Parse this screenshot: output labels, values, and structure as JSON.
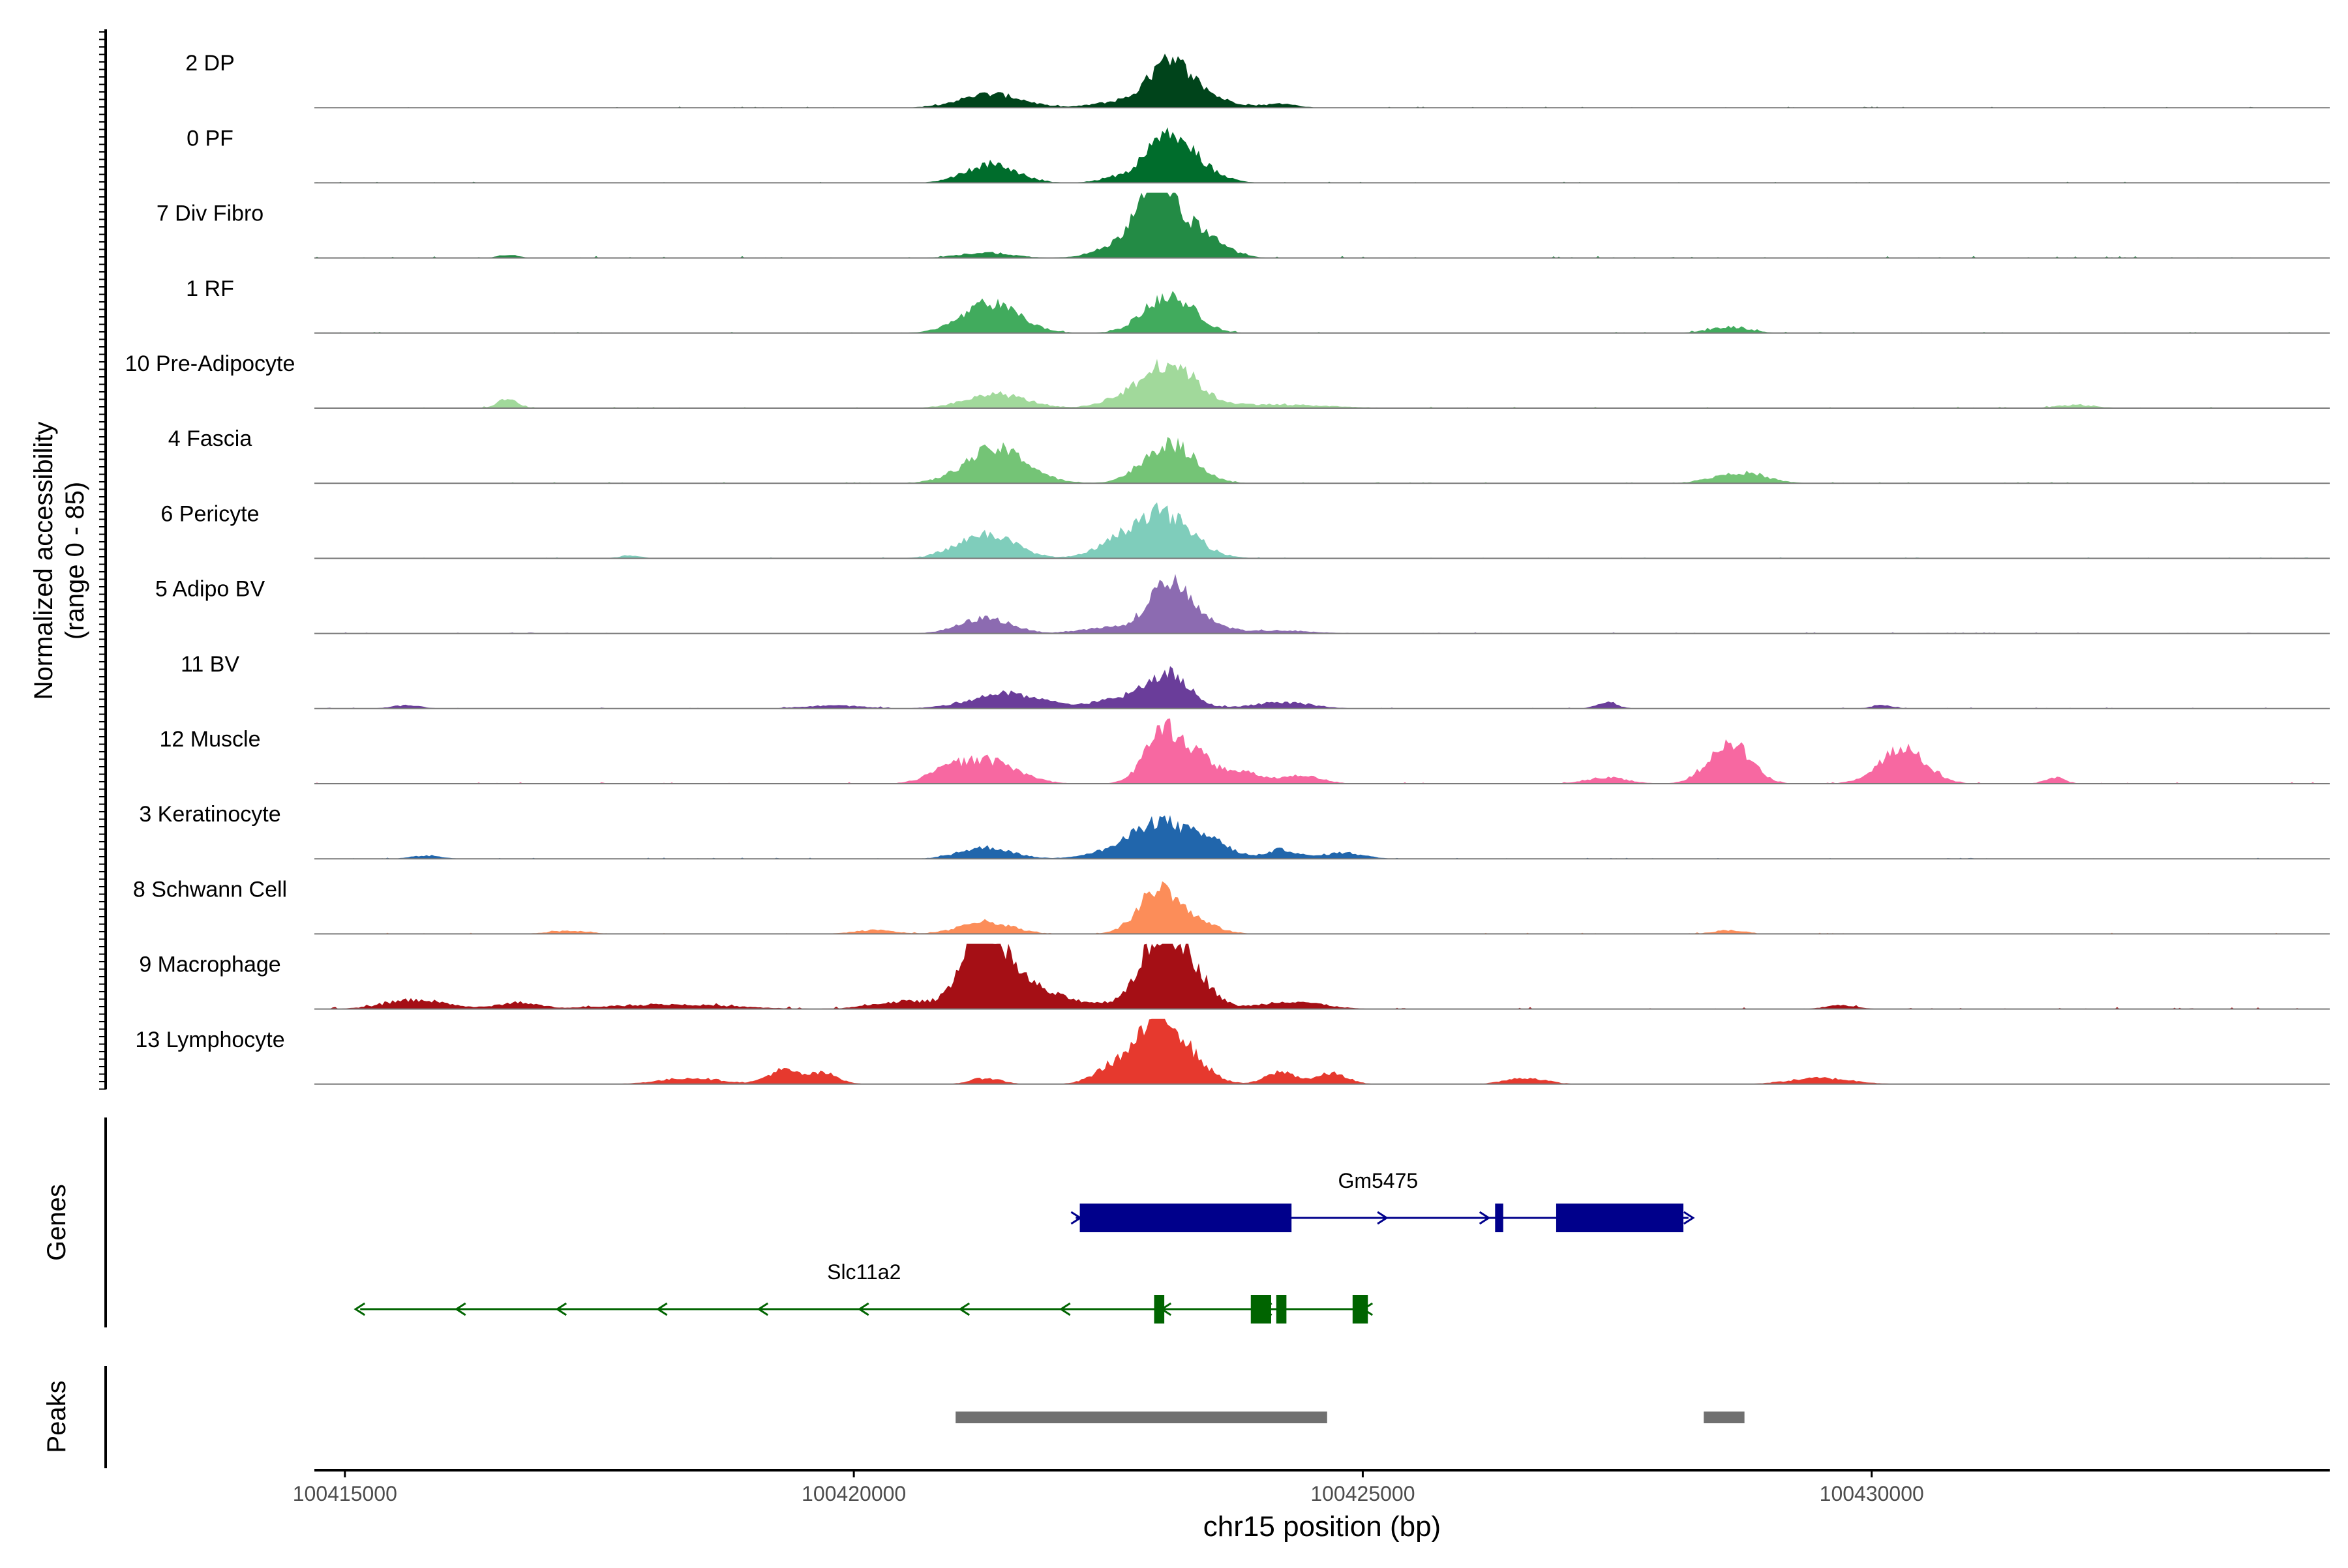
{
  "chart_data": {
    "type": "area",
    "title": "",
    "y_axis_label": "Normalized accessibility",
    "y_axis_sublabel": "(range 0 - 85)",
    "y_range": [
      0,
      85
    ],
    "x_axis_label": "chr15 position (bp)",
    "x_range": [
      100414700,
      100434500
    ],
    "x_ticks": [
      100415000,
      100420000,
      100425000,
      100430000
    ],
    "x_tick_labels": [
      "100415000",
      "100420000",
      "100425000",
      "100430000"
    ],
    "tracks": [
      {
        "name": "2 DP",
        "color": "#00441b",
        "noise": 1.5,
        "peaks": [
          [
            100421350,
            300,
            18
          ],
          [
            100423100,
            220,
            58
          ],
          [
            100422500,
            200,
            6
          ],
          [
            100423500,
            250,
            10
          ],
          [
            100424200,
            150,
            5
          ]
        ]
      },
      {
        "name": "0 PF",
        "color": "#006d2c",
        "noise": 1.5,
        "peaks": [
          [
            100421350,
            250,
            24
          ],
          [
            100423100,
            240,
            60
          ],
          [
            100422500,
            150,
            4
          ],
          [
            100423500,
            200,
            6
          ]
        ]
      },
      {
        "name": "7 Div Fibro",
        "color": "#238b45",
        "noise": 2.5,
        "peaks": [
          [
            100422950,
            150,
            72
          ],
          [
            100423100,
            300,
            50
          ],
          [
            100422600,
            250,
            10
          ],
          [
            100423500,
            200,
            10
          ],
          [
            100421300,
            250,
            7
          ],
          [
            100416600,
            100,
            4
          ]
        ]
      },
      {
        "name": "1 RF",
        "color": "#41ab5d",
        "noise": 1.5,
        "peaks": [
          [
            100421350,
            280,
            38
          ],
          [
            100423100,
            240,
            50
          ],
          [
            100428600,
            200,
            8
          ]
        ]
      },
      {
        "name": "10 Pre-Adipocyte",
        "color": "#a1d99b",
        "noise": 2,
        "peaks": [
          [
            100423100,
            250,
            58
          ],
          [
            100421400,
            300,
            18
          ],
          [
            100422600,
            200,
            10
          ],
          [
            100416600,
            100,
            12
          ],
          [
            100424000,
            600,
            5
          ],
          [
            100432000,
            200,
            4
          ]
        ]
      },
      {
        "name": "4 Fascia",
        "color": "#74c476",
        "noise": 1.5,
        "peaks": [
          [
            100421400,
            300,
            45
          ],
          [
            100423100,
            250,
            52
          ],
          [
            100428700,
            250,
            14
          ]
        ]
      },
      {
        "name": "6 Pericyte",
        "color": "#7fcdbb",
        "noise": 1.5,
        "peaks": [
          [
            100421300,
            280,
            32
          ],
          [
            100423000,
            300,
            60
          ],
          [
            100422500,
            200,
            8
          ],
          [
            100417800,
            100,
            4
          ]
        ]
      },
      {
        "name": "5 Adipo BV",
        "color": "#8c6bb1",
        "noise": 1.5,
        "peaks": [
          [
            100423100,
            200,
            65
          ],
          [
            100421300,
            250,
            20
          ],
          [
            100422500,
            250,
            8
          ],
          [
            100423500,
            200,
            10
          ],
          [
            100424200,
            300,
            4
          ]
        ]
      },
      {
        "name": "11 BV",
        "color": "#6a3d9a",
        "noise": 1.5,
        "peaks": [
          [
            100423100,
            200,
            40
          ],
          [
            100421500,
            350,
            20
          ],
          [
            100422700,
            300,
            14
          ],
          [
            100424200,
            300,
            8
          ],
          [
            100427400,
            100,
            8
          ],
          [
            100419800,
            300,
            4
          ],
          [
            100430100,
            100,
            5
          ],
          [
            100415600,
            150,
            4
          ]
        ]
      },
      {
        "name": "12 Muscle",
        "color": "#f768a1",
        "noise": 2,
        "peaks": [
          [
            100423050,
            180,
            72
          ],
          [
            100421300,
            300,
            30
          ],
          [
            100428600,
            200,
            55
          ],
          [
            100430300,
            230,
            45
          ],
          [
            100423400,
            150,
            28
          ],
          [
            100423800,
            200,
            15
          ],
          [
            100424400,
            200,
            10
          ],
          [
            100420900,
            200,
            10
          ],
          [
            100427400,
            200,
            8
          ],
          [
            100431800,
            100,
            8
          ]
        ]
      },
      {
        "name": "3 Keratinocyte",
        "color": "#2166ac",
        "noise": 1.5,
        "peaks": [
          [
            100423000,
            250,
            48
          ],
          [
            100421300,
            250,
            15
          ],
          [
            100422500,
            250,
            8
          ],
          [
            100423500,
            200,
            22
          ],
          [
            100424200,
            150,
            12
          ],
          [
            100424800,
            200,
            8
          ],
          [
            100415800,
            150,
            4
          ]
        ]
      },
      {
        "name": "8 Schwann Cell",
        "color": "#fc8d59",
        "noise": 1.5,
        "peaks": [
          [
            100423000,
            200,
            58
          ],
          [
            100421300,
            250,
            16
          ],
          [
            100423400,
            200,
            12
          ],
          [
            100420200,
            200,
            5
          ],
          [
            100428600,
            150,
            5
          ],
          [
            100417200,
            200,
            4
          ]
        ]
      },
      {
        "name": "9 Macrophage",
        "color": "#a50f15",
        "noise": 2.5,
        "peaks": [
          [
            100421250,
            180,
            95
          ],
          [
            100421500,
            300,
            35
          ],
          [
            100423000,
            200,
            85
          ],
          [
            100423300,
            200,
            45
          ],
          [
            100422000,
            500,
            10
          ],
          [
            100415700,
            300,
            12
          ],
          [
            100420500,
            300,
            10
          ],
          [
            100416700,
            200,
            8
          ],
          [
            100424300,
            300,
            10
          ],
          [
            100429700,
            150,
            5
          ],
          [
            100418200,
            600,
            6
          ]
        ]
      },
      {
        "name": "13 Lymphocyte",
        "color": "#e6392e",
        "noise": 0,
        "peaks": [
          [
            100423000,
            180,
            80
          ],
          [
            100423300,
            200,
            30
          ],
          [
            100422600,
            200,
            28
          ],
          [
            100419300,
            150,
            18
          ],
          [
            100419700,
            150,
            14
          ],
          [
            100424200,
            150,
            16
          ],
          [
            100424700,
            150,
            14
          ],
          [
            100418400,
            300,
            8
          ],
          [
            100421300,
            150,
            8
          ],
          [
            100426600,
            200,
            8
          ],
          [
            100429500,
            300,
            8
          ]
        ]
      }
    ],
    "genes": [
      {
        "name": "Gm5475",
        "strand": "+",
        "color": "#00008b",
        "start": 100422180,
        "end": 100428200,
        "exons": [
          [
            100422220,
            100424300
          ],
          [
            100426300,
            100426380
          ],
          [
            100426900,
            100428150
          ]
        ]
      },
      {
        "name": "Slc11a2",
        "strand": "-",
        "color": "#006400",
        "start": 100415150,
        "end": 100425050,
        "exons": [
          [
            100422950,
            100423050
          ],
          [
            100423900,
            100424100
          ],
          [
            100424150,
            100424250
          ],
          [
            100424900,
            100425050
          ]
        ]
      }
    ],
    "peaks_track": [
      {
        "start": 100421000,
        "end": 100424650
      },
      {
        "start": 100428350,
        "end": 100428750
      }
    ],
    "panel_labels": {
      "genes": "Genes",
      "peaks": "Peaks"
    },
    "peaks_color": "#707070"
  }
}
